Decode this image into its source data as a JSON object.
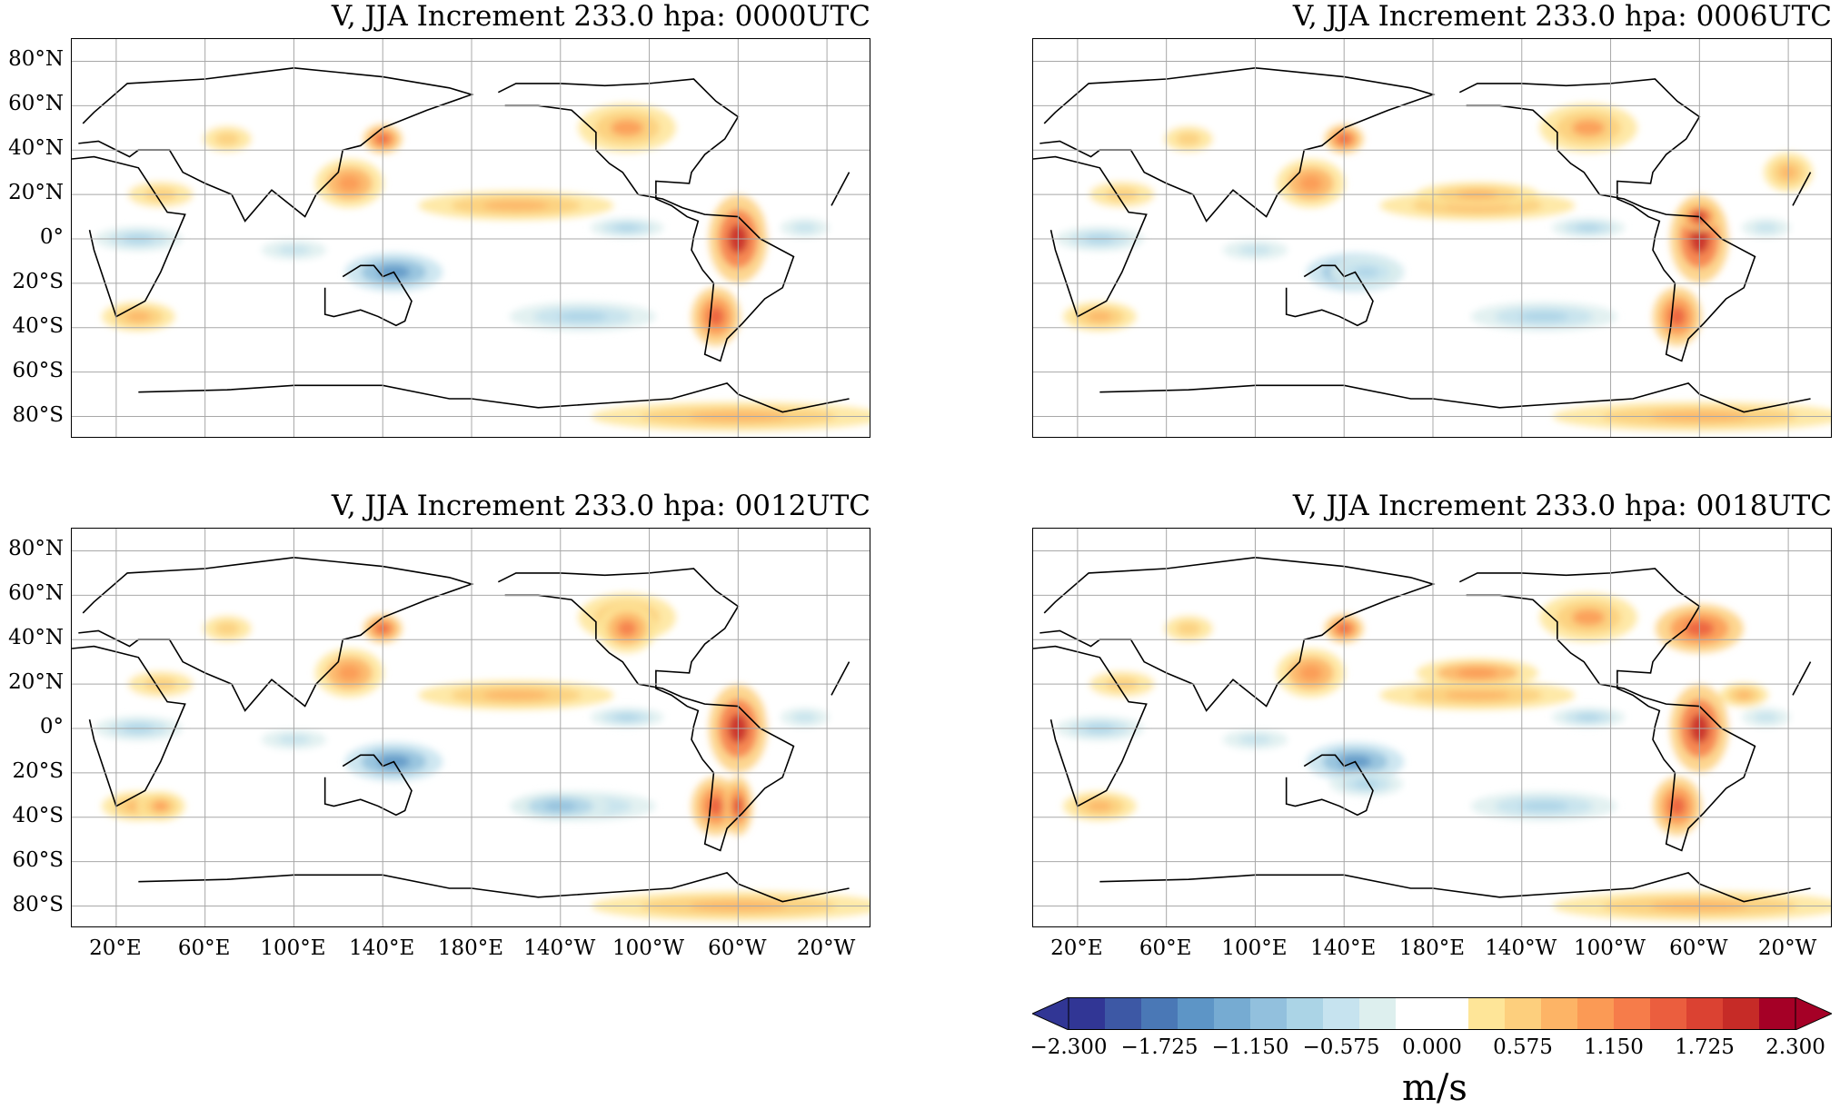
{
  "panels": [
    {
      "id": "p0000",
      "title": "V, JJA Increment 233.0 hpa:  0000UTC",
      "show_yticks": true,
      "show_xticks": false
    },
    {
      "id": "p0006",
      "title": "V, JJA Increment 233.0 hpa:  0006UTC",
      "show_yticks": false,
      "show_xticks": false
    },
    {
      "id": "p0012",
      "title": "V, JJA Increment 233.0 hpa:  0012UTC",
      "show_yticks": true,
      "show_xticks": true
    },
    {
      "id": "p0018",
      "title": "V, JJA Increment 233.0 hpa:  0018UTC",
      "show_yticks": false,
      "show_xticks": true
    }
  ],
  "axes": {
    "lat_ticks": [
      "80°N",
      "60°N",
      "40°N",
      "20°N",
      "0°",
      "20°S",
      "40°S",
      "60°S",
      "80°S"
    ],
    "lon_ticks": [
      "20°E",
      "60°E",
      "100°E",
      "140°E",
      "180°E",
      "140°W",
      "100°W",
      "60°W",
      "20°W"
    ],
    "lat_range": [
      -90,
      90
    ],
    "lon_range": [
      0,
      360
    ],
    "grid": true
  },
  "colorbar": {
    "tick_labels": [
      "−2.300",
      "−1.725",
      "−1.150",
      "−0.575",
      "0.000",
      "0.575",
      "1.150",
      "1.725",
      "2.300"
    ],
    "range": [
      -2.3,
      2.3
    ],
    "colors": [
      "#313695",
      "#3d58a5",
      "#4a78b6",
      "#5d95c6",
      "#76abd2",
      "#92c0dd",
      "#abd4e6",
      "#c6e3ef",
      "#ddefee",
      "#ffffff",
      "#ffffff",
      "#fee598",
      "#fdcf7d",
      "#fdb466",
      "#fb9a55",
      "#f67c4a",
      "#eb5e3e",
      "#db4232",
      "#c62b27",
      "#a50026"
    ],
    "units": "m/s"
  }
}
